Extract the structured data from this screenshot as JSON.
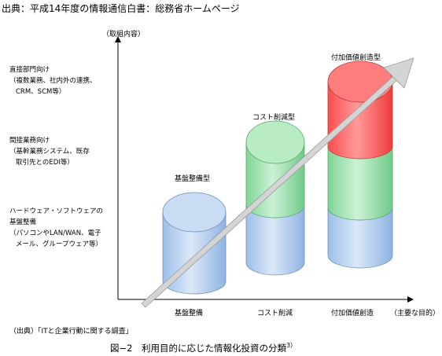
{
  "header": {
    "source": "出典：平成14年度の情報通信白書：総務省ホームページ"
  },
  "axes": {
    "y_label": "（取組内容）",
    "x_label": "（主要な目的）",
    "x_categories": [
      "基盤整備",
      "コスト削減",
      "付加価値創造"
    ]
  },
  "initiatives": [
    {
      "title": "直接部門向け",
      "line1": "（複数業務、社内外の連携、",
      "line2": "CRM、SCM等）"
    },
    {
      "title": "間接業務向け",
      "line1": "（基幹業務システム、既存",
      "line2": "取引先とのEDI等）"
    },
    {
      "title": "ハードウェア・ソフトウェアの",
      "title2": "基盤整備",
      "line1": "（パソコンやLAN/WAN、電子",
      "line2": "メール、グループウェア等）"
    }
  ],
  "stages": [
    "基盤整備型",
    "コスト削減型",
    "付加価値創造型"
  ],
  "note": "（出典）「ITと企業行動に関する調査」",
  "caption": "図−2　利用目的に応じた情報化投資の分類",
  "caption_sup": "3）",
  "colors": {
    "blue": "#b4cef0",
    "green": "#a6e2b4",
    "red": "#ff6a6a",
    "arrow": "#d0d0d0"
  }
}
